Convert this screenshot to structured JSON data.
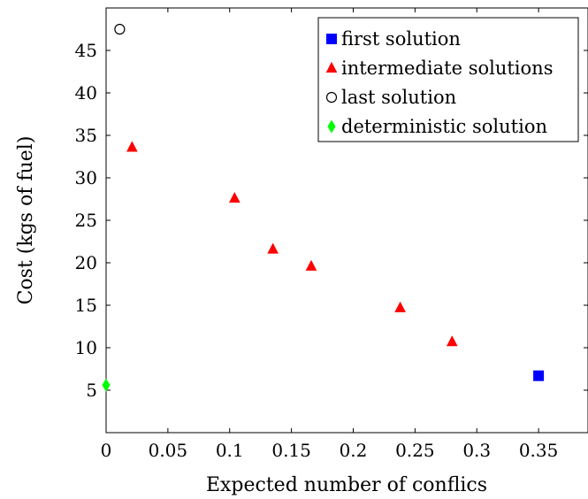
{
  "chart_data": {
    "type": "scatter",
    "title": "",
    "xlabel": "Expected number of conflics",
    "ylabel": "Cost (kgs of fuel)",
    "xlim": [
      0,
      0.39
    ],
    "ylim": [
      0,
      50
    ],
    "xticks": [
      0,
      0.05,
      0.1,
      0.15,
      0.2,
      0.25,
      0.3,
      0.35
    ],
    "xtick_labels": [
      "0",
      "0.05",
      "0.1",
      "0.15",
      "0.2",
      "0.25",
      "0.3",
      "0.35"
    ],
    "yticks": [
      5,
      10,
      15,
      20,
      25,
      30,
      35,
      40,
      45
    ],
    "ytick_labels": [
      "5",
      "10",
      "15",
      "20",
      "25",
      "30",
      "35",
      "40",
      "45"
    ],
    "grid": false,
    "legend_position": "top-right",
    "series": [
      {
        "name": "first solution",
        "marker": "square",
        "color": "#0000ff",
        "points": [
          {
            "x": 0.35,
            "y": 6.7
          }
        ]
      },
      {
        "name": "intermediate solutions",
        "marker": "triangle",
        "color": "#ff0000",
        "points": [
          {
            "x": 0.021,
            "y": 33.6
          },
          {
            "x": 0.104,
            "y": 27.6
          },
          {
            "x": 0.135,
            "y": 21.6
          },
          {
            "x": 0.166,
            "y": 19.6
          },
          {
            "x": 0.238,
            "y": 14.7
          },
          {
            "x": 0.28,
            "y": 10.7
          }
        ]
      },
      {
        "name": "last solution",
        "marker": "circle-open",
        "color": "#000000",
        "points": [
          {
            "x": 0.011,
            "y": 47.5
          }
        ]
      },
      {
        "name": "deterministic solution",
        "marker": "diamond",
        "color": "#00ff00",
        "points": [
          {
            "x": 0.0,
            "y": 5.6
          }
        ]
      }
    ]
  }
}
